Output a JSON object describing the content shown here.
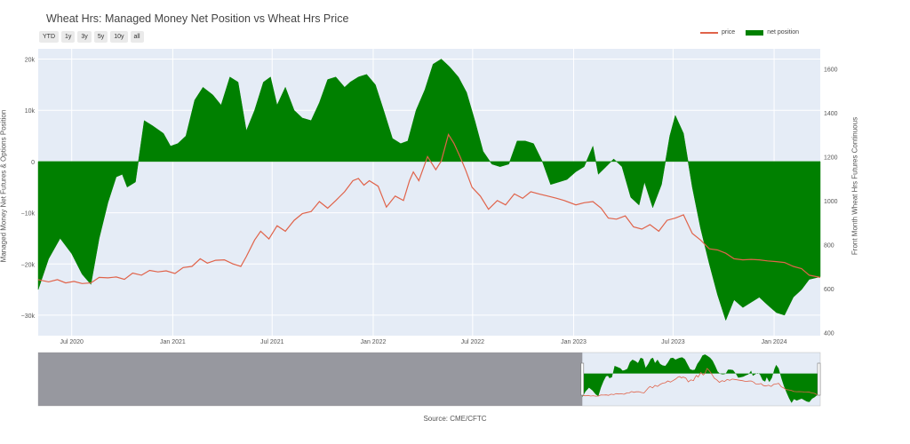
{
  "title": "Wheat Hrs: Managed Money Net Position vs Wheat Hrs Price",
  "range_buttons": [
    "YTD",
    "1y",
    "3y",
    "5y",
    "10y",
    "all"
  ],
  "legend": {
    "price_label": "price",
    "net_label": "net position"
  },
  "source": "Source: CME/CFTC",
  "colors": {
    "net_fill": "#008000",
    "price_line": "#e0634a",
    "plot_bg": "#e5ecf6",
    "grid": "#ffffff",
    "navigator_mask": "#8a8a8f"
  },
  "chart_data": {
    "type": "area",
    "xlabel": "",
    "ylabel_left": "Managed Money Net Futures & Options Position",
    "ylabel_right": "Front Month Wheat Hrs Futures Continuous",
    "x_range": [
      "2020-05-01",
      "2024-03-25"
    ],
    "y_left_range": [
      -34000,
      22000
    ],
    "y_right_range": [
      385,
      1690
    ],
    "x_tick_labels": [
      {
        "date": "2020-07-01",
        "label": "Jul 2020"
      },
      {
        "date": "2021-01-01",
        "label": "Jan 2021"
      },
      {
        "date": "2021-07-01",
        "label": "Jul 2021"
      },
      {
        "date": "2022-01-01",
        "label": "Jan 2022"
      },
      {
        "date": "2022-07-01",
        "label": "Jul 2022"
      },
      {
        "date": "2023-01-01",
        "label": "Jan 2023"
      },
      {
        "date": "2023-07-01",
        "label": "Jul 2023"
      },
      {
        "date": "2024-01-01",
        "label": "Jan 2024"
      }
    ],
    "y_left_ticks": [
      {
        "value": 20000,
        "label": "20k"
      },
      {
        "value": 10000,
        "label": "10k"
      },
      {
        "value": 0,
        "label": "0"
      },
      {
        "value": -10000,
        "label": "−10k"
      },
      {
        "value": -20000,
        "label": "−20k"
      },
      {
        "value": -30000,
        "label": "−30k"
      }
    ],
    "y_right_ticks": [
      {
        "value": 1600,
        "label": "1600"
      },
      {
        "value": 1400,
        "label": "1400"
      },
      {
        "value": 1200,
        "label": "1200"
      },
      {
        "value": 1000,
        "label": "1000"
      },
      {
        "value": 800,
        "label": "800"
      },
      {
        "value": 600,
        "label": "600"
      },
      {
        "value": 400,
        "label": "400"
      }
    ],
    "series": [
      {
        "name": "net position",
        "axis": "left",
        "type": "area",
        "points": [
          [
            "2020-05-01",
            -25000
          ],
          [
            "2020-05-20",
            -19000
          ],
          [
            "2020-06-10",
            -15000
          ],
          [
            "2020-07-01",
            -18000
          ],
          [
            "2020-07-20",
            -22000
          ],
          [
            "2020-08-05",
            -24000
          ],
          [
            "2020-08-20",
            -15000
          ],
          [
            "2020-09-05",
            -8000
          ],
          [
            "2020-09-20",
            -3000
          ],
          [
            "2020-10-01",
            -2500
          ],
          [
            "2020-10-10",
            -5000
          ],
          [
            "2020-10-25",
            -4000
          ],
          [
            "2020-11-10",
            8000
          ],
          [
            "2020-11-25",
            7000
          ],
          [
            "2020-12-15",
            5500
          ],
          [
            "2020-12-28",
            3000
          ],
          [
            "2021-01-10",
            3500
          ],
          [
            "2021-01-25",
            5000
          ],
          [
            "2021-02-10",
            12000
          ],
          [
            "2021-02-25",
            14500
          ],
          [
            "2021-03-15",
            13000
          ],
          [
            "2021-03-30",
            11000
          ],
          [
            "2021-04-15",
            16500
          ],
          [
            "2021-04-30",
            15500
          ],
          [
            "2021-05-15",
            6000
          ],
          [
            "2021-05-30",
            10000
          ],
          [
            "2021-06-15",
            15500
          ],
          [
            "2021-06-28",
            16500
          ],
          [
            "2021-07-10",
            11000
          ],
          [
            "2021-07-25",
            14500
          ],
          [
            "2021-08-10",
            10000
          ],
          [
            "2021-08-25",
            8500
          ],
          [
            "2021-09-10",
            8000
          ],
          [
            "2021-09-25",
            11500
          ],
          [
            "2021-10-10",
            16000
          ],
          [
            "2021-10-25",
            16500
          ],
          [
            "2021-11-10",
            14500
          ],
          [
            "2021-11-20",
            15500
          ],
          [
            "2021-12-05",
            16500
          ],
          [
            "2021-12-20",
            17000
          ],
          [
            "2022-01-05",
            15000
          ],
          [
            "2022-01-20",
            10000
          ],
          [
            "2022-02-05",
            4500
          ],
          [
            "2022-02-20",
            3500
          ],
          [
            "2022-03-05",
            4000
          ],
          [
            "2022-03-20",
            10000
          ],
          [
            "2022-04-05",
            14000
          ],
          [
            "2022-04-20",
            19000
          ],
          [
            "2022-05-05",
            20000
          ],
          [
            "2022-05-20",
            18500
          ],
          [
            "2022-06-05",
            16500
          ],
          [
            "2022-06-20",
            13500
          ],
          [
            "2022-07-05",
            8000
          ],
          [
            "2022-07-20",
            2000
          ],
          [
            "2022-08-05",
            -500
          ],
          [
            "2022-08-20",
            -1000
          ],
          [
            "2022-09-05",
            -500
          ],
          [
            "2022-09-20",
            4000
          ],
          [
            "2022-10-05",
            4000
          ],
          [
            "2022-10-20",
            3500
          ],
          [
            "2022-11-05",
            0
          ],
          [
            "2022-11-20",
            -4500
          ],
          [
            "2022-12-05",
            -4000
          ],
          [
            "2022-12-20",
            -3500
          ],
          [
            "2023-01-05",
            -2000
          ],
          [
            "2023-01-20",
            -1000
          ],
          [
            "2023-02-05",
            3000
          ],
          [
            "2023-02-15",
            -2500
          ],
          [
            "2023-03-01",
            -1000
          ],
          [
            "2023-03-15",
            500
          ],
          [
            "2023-03-30",
            -1000
          ],
          [
            "2023-04-15",
            -7000
          ],
          [
            "2023-04-30",
            -8500
          ],
          [
            "2023-05-10",
            -4000
          ],
          [
            "2023-05-25",
            -9000
          ],
          [
            "2023-06-10",
            -4500
          ],
          [
            "2023-06-25",
            5000
          ],
          [
            "2023-07-05",
            9000
          ],
          [
            "2023-07-20",
            5500
          ],
          [
            "2023-08-05",
            -5000
          ],
          [
            "2023-08-20",
            -13000
          ],
          [
            "2023-09-05",
            -20000
          ],
          [
            "2023-09-20",
            -26000
          ],
          [
            "2023-10-05",
            -31000
          ],
          [
            "2023-10-20",
            -27000
          ],
          [
            "2023-11-05",
            -28500
          ],
          [
            "2023-11-20",
            -27500
          ],
          [
            "2023-12-05",
            -26500
          ],
          [
            "2023-12-20",
            -28000
          ],
          [
            "2024-01-05",
            -29500
          ],
          [
            "2024-01-20",
            -30000
          ],
          [
            "2024-02-05",
            -26500
          ],
          [
            "2024-02-20",
            -25000
          ],
          [
            "2024-03-05",
            -23000
          ],
          [
            "2024-03-25",
            -22500
          ]
        ]
      },
      {
        "name": "price",
        "axis": "right",
        "type": "line",
        "points": [
          [
            "2020-05-01",
            640
          ],
          [
            "2020-05-20",
            630
          ],
          [
            "2020-06-05",
            640
          ],
          [
            "2020-06-20",
            625
          ],
          [
            "2020-07-05",
            632
          ],
          [
            "2020-07-20",
            622
          ],
          [
            "2020-08-05",
            625
          ],
          [
            "2020-08-20",
            650
          ],
          [
            "2020-09-05",
            648
          ],
          [
            "2020-09-20",
            652
          ],
          [
            "2020-10-05",
            641
          ],
          [
            "2020-10-20",
            670
          ],
          [
            "2020-11-05",
            660
          ],
          [
            "2020-11-20",
            682
          ],
          [
            "2020-12-05",
            675
          ],
          [
            "2020-12-20",
            680
          ],
          [
            "2021-01-05",
            668
          ],
          [
            "2021-01-20",
            695
          ],
          [
            "2021-02-05",
            700
          ],
          [
            "2021-02-20",
            735
          ],
          [
            "2021-03-05",
            715
          ],
          [
            "2021-03-20",
            728
          ],
          [
            "2021-04-05",
            730
          ],
          [
            "2021-04-20",
            712
          ],
          [
            "2021-05-05",
            700
          ],
          [
            "2021-05-15",
            745
          ],
          [
            "2021-05-30",
            820
          ],
          [
            "2021-06-10",
            860
          ],
          [
            "2021-06-25",
            825
          ],
          [
            "2021-07-10",
            885
          ],
          [
            "2021-07-25",
            860
          ],
          [
            "2021-08-10",
            910
          ],
          [
            "2021-08-25",
            940
          ],
          [
            "2021-09-10",
            950
          ],
          [
            "2021-09-25",
            995
          ],
          [
            "2021-10-10",
            965
          ],
          [
            "2021-10-25",
            1000
          ],
          [
            "2021-11-10",
            1040
          ],
          [
            "2021-11-25",
            1090
          ],
          [
            "2021-12-05",
            1100
          ],
          [
            "2021-12-15",
            1070
          ],
          [
            "2021-12-25",
            1090
          ],
          [
            "2022-01-10",
            1065
          ],
          [
            "2022-01-25",
            970
          ],
          [
            "2022-02-10",
            1020
          ],
          [
            "2022-02-25",
            1000
          ],
          [
            "2022-03-08",
            1090
          ],
          [
            "2022-03-15",
            1130
          ],
          [
            "2022-03-25",
            1090
          ],
          [
            "2022-04-10",
            1200
          ],
          [
            "2022-04-25",
            1140
          ],
          [
            "2022-05-05",
            1180
          ],
          [
            "2022-05-18",
            1300
          ],
          [
            "2022-05-28",
            1260
          ],
          [
            "2022-06-08",
            1200
          ],
          [
            "2022-06-18",
            1140
          ],
          [
            "2022-06-30",
            1060
          ],
          [
            "2022-07-15",
            1020
          ],
          [
            "2022-07-30",
            960
          ],
          [
            "2022-08-15",
            1000
          ],
          [
            "2022-08-30",
            980
          ],
          [
            "2022-09-15",
            1030
          ],
          [
            "2022-09-30",
            1010
          ],
          [
            "2022-10-15",
            1040
          ],
          [
            "2022-10-30",
            1030
          ],
          [
            "2022-11-15",
            1020
          ],
          [
            "2022-12-01",
            1010
          ],
          [
            "2022-12-15",
            1000
          ],
          [
            "2023-01-05",
            980
          ],
          [
            "2023-01-20",
            990
          ],
          [
            "2023-02-05",
            995
          ],
          [
            "2023-02-20",
            965
          ],
          [
            "2023-03-05",
            920
          ],
          [
            "2023-03-20",
            915
          ],
          [
            "2023-04-05",
            930
          ],
          [
            "2023-04-20",
            880
          ],
          [
            "2023-05-05",
            870
          ],
          [
            "2023-05-20",
            890
          ],
          [
            "2023-06-05",
            860
          ],
          [
            "2023-06-20",
            910
          ],
          [
            "2023-07-05",
            920
          ],
          [
            "2023-07-20",
            935
          ],
          [
            "2023-08-05",
            850
          ],
          [
            "2023-08-20",
            820
          ],
          [
            "2023-09-05",
            780
          ],
          [
            "2023-09-20",
            775
          ],
          [
            "2023-10-05",
            760
          ],
          [
            "2023-10-20",
            735
          ],
          [
            "2023-11-05",
            730
          ],
          [
            "2023-11-20",
            732
          ],
          [
            "2023-12-05",
            730
          ],
          [
            "2023-12-20",
            725
          ],
          [
            "2024-01-05",
            722
          ],
          [
            "2024-01-20",
            718
          ],
          [
            "2024-02-05",
            700
          ],
          [
            "2024-02-20",
            690
          ],
          [
            "2024-03-05",
            660
          ],
          [
            "2024-03-25",
            650
          ]
        ]
      }
    ],
    "grid": true,
    "legend_position": "top-right",
    "navigator": {
      "x_range": [
        "2011-06-01",
        "2024-03-25"
      ],
      "selected_range": [
        "2020-05-01",
        "2024-03-25"
      ]
    }
  }
}
